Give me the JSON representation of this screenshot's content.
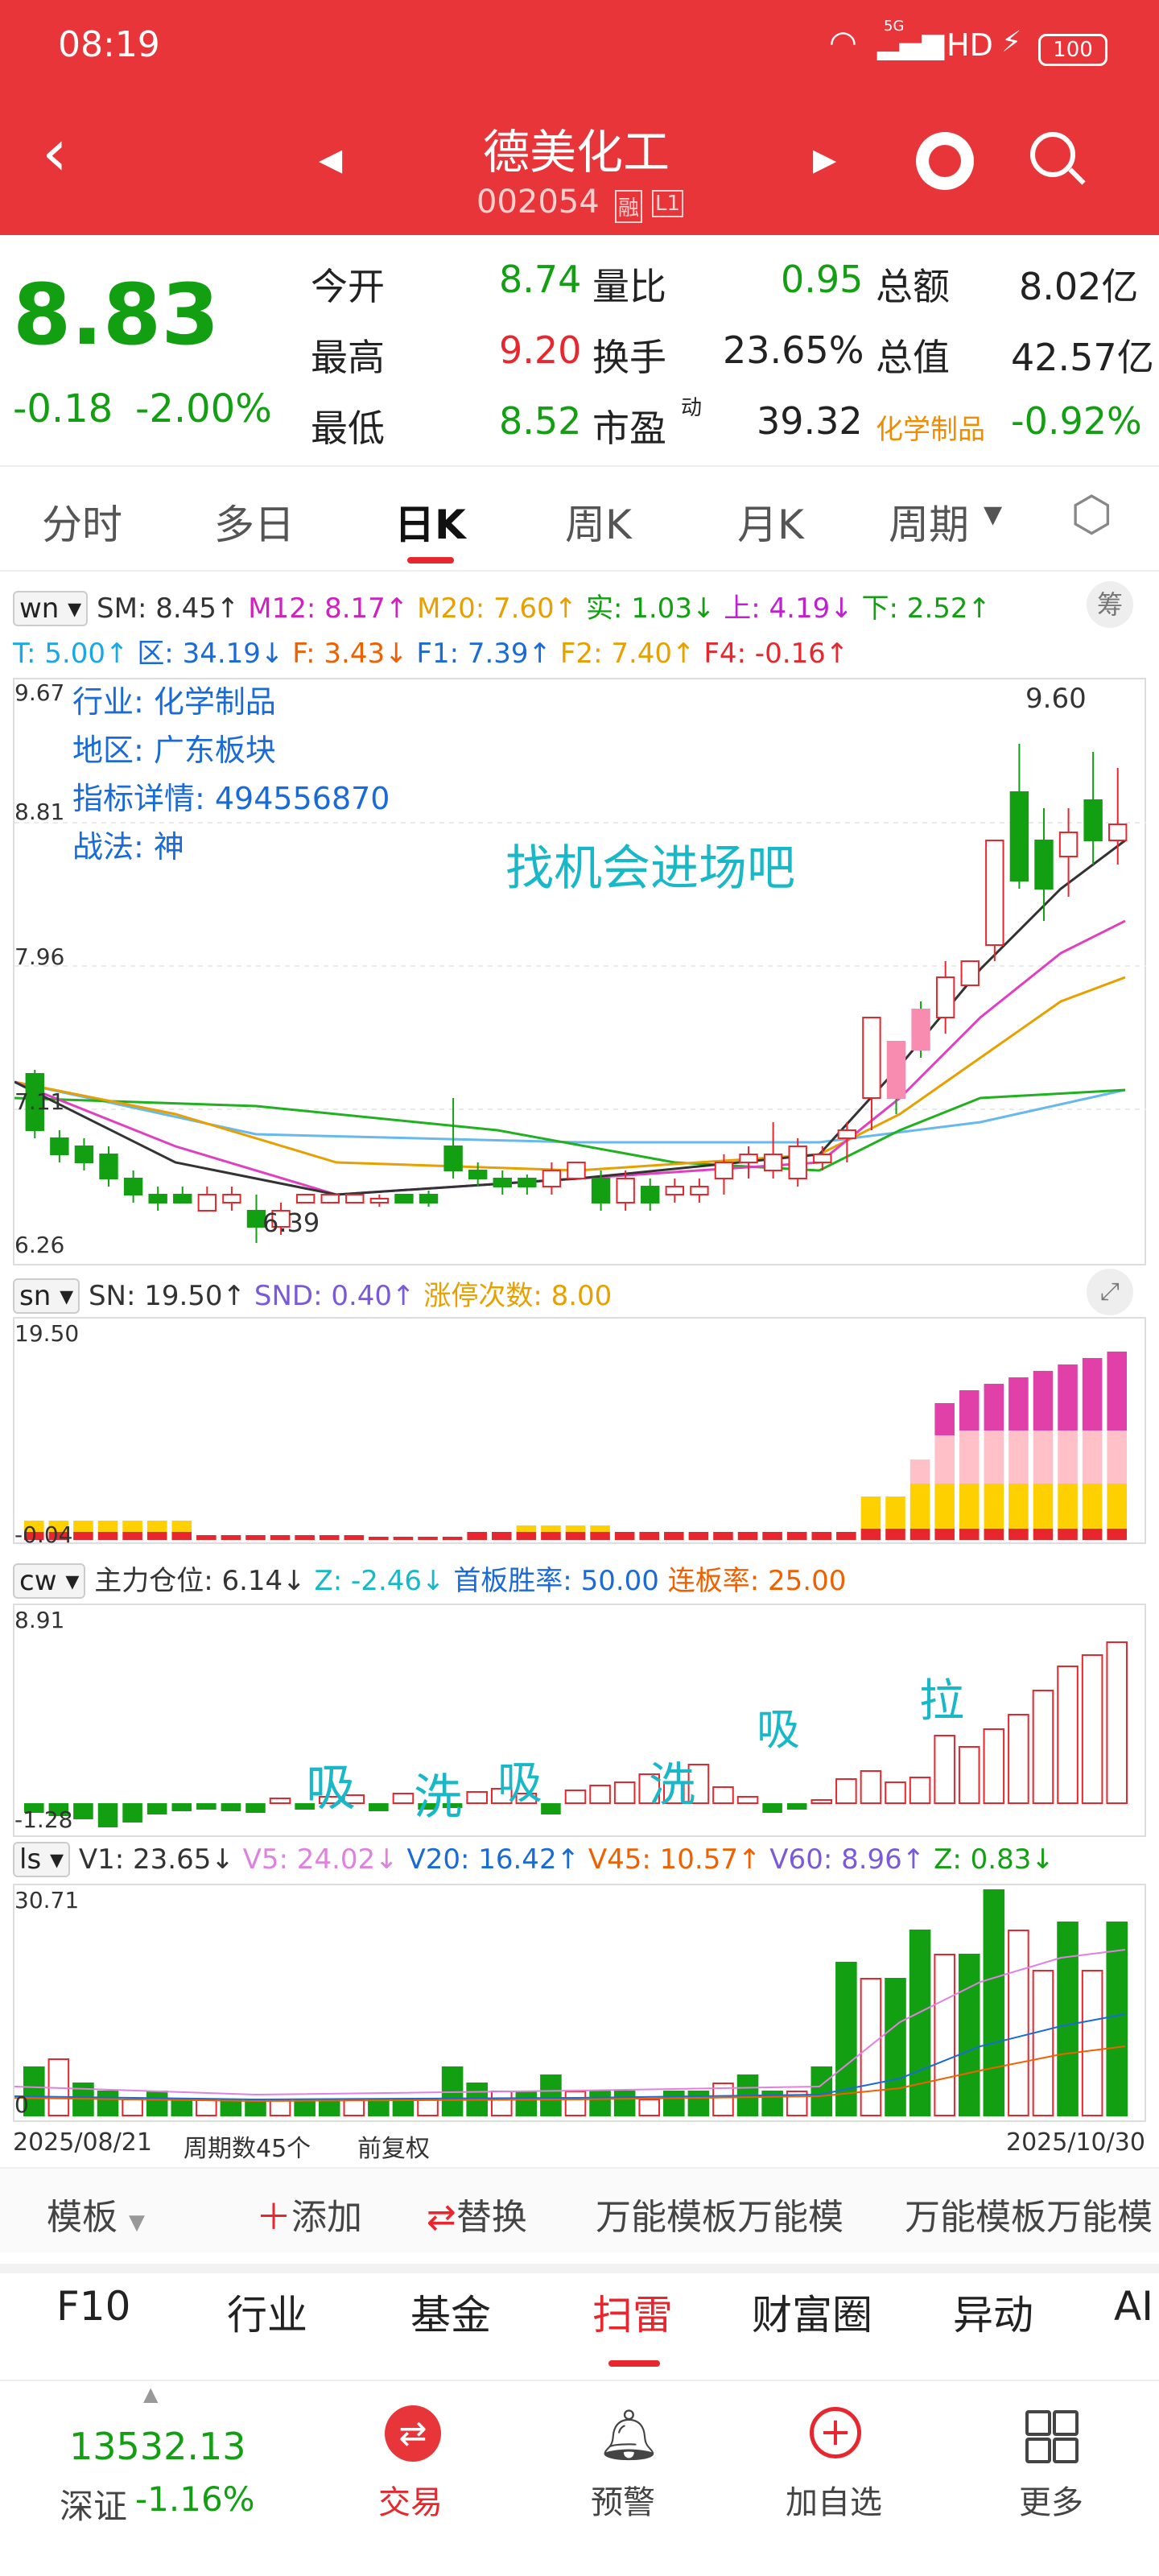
{
  "status_bar": {
    "time": "08:19",
    "network": "5G",
    "hd": "HD",
    "battery": "100"
  },
  "header": {
    "stock_name": "德美化工",
    "stock_code": "002054",
    "badge_margin": "融",
    "badge_level": "L1"
  },
  "quote": {
    "price": "8.83",
    "change": "-0.18",
    "change_pct": "-2.00%",
    "fields": [
      {
        "label": "今开",
        "value": "8.74"
      },
      {
        "label": "量比",
        "value": "0.95"
      },
      {
        "label": "总额",
        "value": "8.02亿"
      },
      {
        "label": "最高",
        "value": "9.20"
      },
      {
        "label": "换手",
        "value": "23.65%"
      },
      {
        "label": "总值",
        "value": "42.57亿"
      },
      {
        "label": "最低",
        "value": "8.52"
      },
      {
        "label": "市盈",
        "value": "39.32"
      },
      {
        "label": "化学制品",
        "value": "-0.92%"
      }
    ],
    "pe_sup": "动"
  },
  "period_tabs": [
    "分时",
    "多日",
    "日K",
    "周K",
    "月K",
    "周期"
  ],
  "active_tab": "日K",
  "main_indicator": {
    "selector": "wn",
    "line1": [
      "SM: 8.45↑",
      "M12: 8.17↑",
      "M20: 7.60↑",
      "实: 1.03↓",
      "上: 4.19↓",
      "下: 2.52↑"
    ],
    "line2": [
      "T: 5.00↑",
      "区: 34.19↓",
      "F: 3.43↓",
      "F1: 7.39↑",
      "F2: 7.40↑",
      "F4: -0.16↑"
    ],
    "chip_label": "筹",
    "y_labels": [
      "9.67",
      "8.81",
      "7.96",
      "7.11",
      "6.26"
    ],
    "info": [
      "行业: 化学制品",
      "地区: 广东板块",
      "指标详情: 494556870",
      "战法: 神"
    ],
    "callout": "找机会进场吧",
    "high_label": "9.60",
    "low_label": "6.39"
  },
  "sn_indicator": {
    "selector": "sn",
    "items": [
      "SN: 19.50↑",
      "SND: 0.40↑",
      "涨停次数: 8.00"
    ],
    "y_top": "19.50",
    "y_bottom": "-0.04"
  },
  "cw_indicator": {
    "selector": "cw",
    "items": [
      "主力仓位: 6.14↓",
      "Z: -2.46↓",
      "首板胜率: 50.00",
      "连板率: 25.00"
    ],
    "y_top": "8.91",
    "y_bottom": "-1.28",
    "annotations": [
      "吸",
      "洗",
      "吸",
      "洗",
      "吸",
      "拉"
    ]
  },
  "ls_indicator": {
    "selector": "ls",
    "items": [
      "V1: 23.65↓",
      "V5: 24.02↓",
      "V20: 16.42↑",
      "V45: 10.57↑",
      "V60: 8.96↑",
      "Z: 0.83↓"
    ],
    "y_top": "30.71",
    "y_bottom": "0"
  },
  "footer_info": {
    "start_date": "2025/08/21",
    "periods": "周期数45个",
    "adjust": "前复权",
    "end_date": "2025/10/30"
  },
  "template_bar": [
    "模板",
    "添加",
    "替换",
    "万能模板万能模",
    "万能模板万能模"
  ],
  "bottom_tabs": [
    "F10",
    "行业",
    "基金",
    "扫雷",
    "财富圈",
    "异动",
    "AI"
  ],
  "active_bottom_tab": "扫雷",
  "bottom_nav": {
    "index_value": "13532.13",
    "index_name": "深证",
    "index_change": "-1.16%",
    "items": [
      "交易",
      "预警",
      "加自选",
      "更多"
    ]
  },
  "colors": {
    "up": "#e8262d",
    "down": "#12a012",
    "header_bg": "#e8353a",
    "accent_cyan": "#18b8c8"
  }
}
